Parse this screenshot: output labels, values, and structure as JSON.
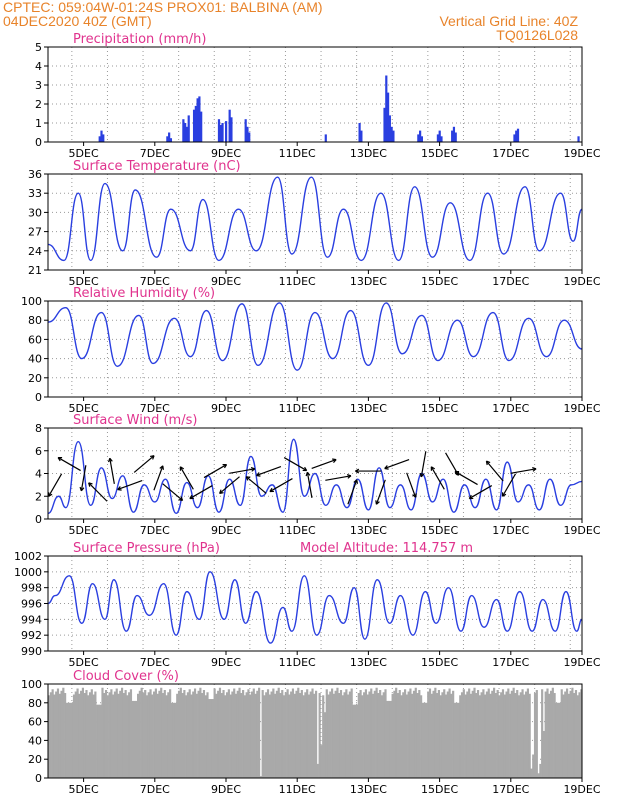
{
  "header": {
    "line1_left": "CPTEC:   059:04W-01:24S   PROX01: BALBINA (AM)",
    "line2_left": "04DEC2020 40Z (GMT)",
    "line2_right": "Vertical Grid Line: 40Z",
    "line3_right": "TQ0126L028",
    "color": "#e8832a"
  },
  "style": {
    "title_color": "#e0338e",
    "line_color": "#2a3fe0",
    "bar_color": "#2a3fe0",
    "cloud_color": "#a9a9a9",
    "arrow_color": "#000000"
  },
  "chart_data": [
    {
      "type": "bar",
      "title": "Precipitation (mm/h)",
      "ylim": [
        0,
        5
      ],
      "yticks": [
        0,
        1,
        2,
        3,
        4,
        5
      ],
      "x_ticks": [
        "5DEC",
        "7DEC",
        "9DEC",
        "11DEC",
        "13DEC",
        "15DEC",
        "17DEC",
        "19DEC"
      ],
      "x_range_days": [
        0,
        15
      ],
      "grid": "dotted",
      "bars": [
        {
          "d": 1.45,
          "v": 0.3
        },
        {
          "d": 1.5,
          "v": 0.6
        },
        {
          "d": 1.55,
          "v": 0.4
        },
        {
          "d": 3.35,
          "v": 0.3
        },
        {
          "d": 3.4,
          "v": 0.5
        },
        {
          "d": 3.45,
          "v": 0.2
        },
        {
          "d": 3.8,
          "v": 1.2
        },
        {
          "d": 3.85,
          "v": 1.0
        },
        {
          "d": 3.9,
          "v": 0.8
        },
        {
          "d": 3.95,
          "v": 1.4
        },
        {
          "d": 4.1,
          "v": 1.7
        },
        {
          "d": 4.15,
          "v": 1.9
        },
        {
          "d": 4.2,
          "v": 2.3
        },
        {
          "d": 4.25,
          "v": 2.4
        },
        {
          "d": 4.3,
          "v": 1.6
        },
        {
          "d": 4.8,
          "v": 1.2
        },
        {
          "d": 4.85,
          "v": 0.9
        },
        {
          "d": 4.9,
          "v": 1.0
        },
        {
          "d": 5.0,
          "v": 1.1
        },
        {
          "d": 5.1,
          "v": 1.7
        },
        {
          "d": 5.15,
          "v": 1.3
        },
        {
          "d": 5.55,
          "v": 1.2
        },
        {
          "d": 5.6,
          "v": 0.8
        },
        {
          "d": 5.65,
          "v": 0.5
        },
        {
          "d": 7.8,
          "v": 0.4
        },
        {
          "d": 8.75,
          "v": 1.0
        },
        {
          "d": 8.8,
          "v": 0.6
        },
        {
          "d": 9.45,
          "v": 1.8
        },
        {
          "d": 9.5,
          "v": 3.5
        },
        {
          "d": 9.55,
          "v": 2.6
        },
        {
          "d": 9.6,
          "v": 1.4
        },
        {
          "d": 9.65,
          "v": 0.8
        },
        {
          "d": 9.7,
          "v": 0.6
        },
        {
          "d": 10.4,
          "v": 0.4
        },
        {
          "d": 10.45,
          "v": 0.6
        },
        {
          "d": 10.5,
          "v": 0.3
        },
        {
          "d": 10.95,
          "v": 0.4
        },
        {
          "d": 11.0,
          "v": 0.6
        },
        {
          "d": 11.05,
          "v": 0.3
        },
        {
          "d": 11.35,
          "v": 0.6
        },
        {
          "d": 11.4,
          "v": 0.8
        },
        {
          "d": 11.45,
          "v": 0.5
        },
        {
          "d": 13.1,
          "v": 0.4
        },
        {
          "d": 13.15,
          "v": 0.6
        },
        {
          "d": 13.2,
          "v": 0.7
        },
        {
          "d": 14.9,
          "v": 0.3
        }
      ]
    },
    {
      "type": "line",
      "title": "Surface Temperature (nC)",
      "ylim": [
        21,
        36
      ],
      "yticks": [
        21,
        24,
        27,
        30,
        33,
        36
      ],
      "x_ticks": [
        "5DEC",
        "7DEC",
        "9DEC",
        "11DEC",
        "13DEC",
        "15DEC",
        "17DEC",
        "19DEC"
      ],
      "x_range_days": [
        0,
        15
      ],
      "grid": "dotted",
      "extrema_days": [
        0,
        0.45,
        0.85,
        1.2,
        1.6,
        2.1,
        2.45,
        3.05,
        3.45,
        4.0,
        4.35,
        4.8,
        5.35,
        5.85,
        6.45,
        6.85,
        7.4,
        7.85,
        8.3,
        8.8,
        9.35,
        9.85,
        10.3,
        10.8,
        11.3,
        11.85,
        12.35,
        12.8,
        13.4,
        13.8,
        14.4,
        14.75,
        15.0
      ],
      "extrema_values": [
        25,
        22.5,
        33,
        22.5,
        34.5,
        24,
        33.5,
        23,
        30.5,
        24,
        32,
        22.5,
        30.5,
        24,
        35.5,
        23.5,
        35.5,
        23,
        30.5,
        22.5,
        33,
        22.5,
        34,
        23,
        31.5,
        22.5,
        33,
        23.5,
        34,
        24,
        33,
        25.5,
        30.5
      ]
    },
    {
      "type": "line",
      "title": "Relative Humidity (%)",
      "ylim": [
        0,
        100
      ],
      "yticks": [
        0,
        20,
        40,
        60,
        80,
        100
      ],
      "x_ticks": [
        "5DEC",
        "7DEC",
        "9DEC",
        "11DEC",
        "13DEC",
        "15DEC",
        "17DEC",
        "19DEC"
      ],
      "x_range_days": [
        0,
        15
      ],
      "grid": "dotted",
      "extrema_days": [
        0,
        0.5,
        0.95,
        1.5,
        1.95,
        2.55,
        2.95,
        3.55,
        4.0,
        4.45,
        4.9,
        5.45,
        5.9,
        6.5,
        7.0,
        7.5,
        8.0,
        8.5,
        9.0,
        9.5,
        9.95,
        10.5,
        10.95,
        11.5,
        11.95,
        12.5,
        12.95,
        13.5,
        14.0,
        14.5,
        15.0
      ],
      "extrema_values": [
        78,
        93,
        40,
        88,
        32,
        85,
        35,
        82,
        42,
        90,
        38,
        97,
        33,
        98,
        28,
        88,
        40,
        90,
        33,
        98,
        45,
        85,
        38,
        80,
        42,
        88,
        38,
        82,
        42,
        80,
        50
      ]
    },
    {
      "type": "line",
      "title": "Surface Wind (m/s)",
      "ylim": [
        0,
        8
      ],
      "yticks": [
        0,
        2,
        4,
        6,
        8
      ],
      "x_ticks": [
        "5DEC",
        "7DEC",
        "9DEC",
        "11DEC",
        "13DEC",
        "15DEC",
        "17DEC",
        "19DEC"
      ],
      "x_range_days": [
        0,
        15
      ],
      "grid": "dotted",
      "extrema_days": [
        0,
        0.3,
        0.5,
        0.85,
        1.2,
        1.5,
        1.8,
        2.1,
        2.4,
        2.7,
        3.0,
        3.3,
        3.6,
        3.9,
        4.2,
        4.5,
        4.8,
        5.1,
        5.4,
        5.7,
        6.0,
        6.3,
        6.6,
        6.9,
        7.2,
        7.5,
        7.8,
        8.1,
        8.4,
        8.7,
        9.0,
        9.3,
        9.6,
        9.9,
        10.2,
        10.5,
        10.8,
        11.1,
        11.4,
        11.7,
        12.0,
        12.3,
        12.6,
        12.9,
        13.2,
        13.5,
        13.8,
        14.1,
        14.4,
        14.7,
        15.0
      ],
      "extrema_values": [
        0.5,
        2.0,
        1.0,
        6.8,
        1.2,
        4.5,
        1.8,
        3.8,
        0.6,
        3.0,
        1.5,
        3.5,
        0.5,
        3.2,
        1.0,
        3.8,
        0.6,
        3.5,
        1.2,
        5.5,
        2.0,
        3.0,
        0.6,
        7.0,
        2.0,
        4.0,
        1.2,
        3.0,
        1.0,
        3.5,
        0.8,
        4.5,
        1.0,
        3.0,
        0.8,
        4.0,
        1.5,
        3.5,
        0.6,
        3.0,
        1.0,
        3.5,
        0.8,
        5.0,
        1.5,
        3.0,
        0.8,
        3.5,
        1.2,
        3.0,
        3.3
      ],
      "arrows": [
        {
          "d": 0.2,
          "dir_deg": 240
        },
        {
          "d": 0.6,
          "dir_deg": 150
        },
        {
          "d": 1.0,
          "dir_deg": 260
        },
        {
          "d": 1.4,
          "dir_deg": 135
        },
        {
          "d": 1.8,
          "dir_deg": 100
        },
        {
          "d": 2.3,
          "dir_deg": 200
        },
        {
          "d": 2.7,
          "dir_deg": 40
        },
        {
          "d": 3.1,
          "dir_deg": 70
        },
        {
          "d": 3.5,
          "dir_deg": 320
        },
        {
          "d": 3.9,
          "dir_deg": 120
        },
        {
          "d": 4.3,
          "dir_deg": 210
        },
        {
          "d": 4.7,
          "dir_deg": 30
        },
        {
          "d": 5.1,
          "dir_deg": 220
        },
        {
          "d": 5.45,
          "dir_deg": 10
        },
        {
          "d": 5.85,
          "dir_deg": 140
        },
        {
          "d": 6.2,
          "dir_deg": 200
        },
        {
          "d": 6.55,
          "dir_deg": 210
        },
        {
          "d": 6.95,
          "dir_deg": 330
        },
        {
          "d": 7.35,
          "dir_deg": 100
        },
        {
          "d": 7.75,
          "dir_deg": 20
        },
        {
          "d": 8.15,
          "dir_deg": 10
        },
        {
          "d": 8.55,
          "dir_deg": 70
        },
        {
          "d": 9.0,
          "dir_deg": 180
        },
        {
          "d": 9.35,
          "dir_deg": 250
        },
        {
          "d": 9.8,
          "dir_deg": 200
        },
        {
          "d": 10.2,
          "dir_deg": 290
        },
        {
          "d": 10.55,
          "dir_deg": 260
        },
        {
          "d": 10.95,
          "dir_deg": 120
        },
        {
          "d": 11.35,
          "dir_deg": 300
        },
        {
          "d": 11.75,
          "dir_deg": 150
        },
        {
          "d": 12.15,
          "dir_deg": 210
        },
        {
          "d": 12.55,
          "dir_deg": 130
        },
        {
          "d": 12.95,
          "dir_deg": 240
        },
        {
          "d": 13.35,
          "dir_deg": 10
        }
      ]
    },
    {
      "type": "line",
      "title": "Surface Pressure (hPa)",
      "subtitle": "Model Altitude: 114.757  m",
      "ylim": [
        990,
        1002
      ],
      "yticks": [
        990,
        992,
        994,
        996,
        998,
        1000,
        1002
      ],
      "x_ticks": [
        "5DEC",
        "7DEC",
        "9DEC",
        "11DEC",
        "13DEC",
        "15DEC",
        "17DEC",
        "19DEC"
      ],
      "x_range_days": [
        0,
        15
      ],
      "grid": "dotted",
      "extrema_days": [
        0,
        0.2,
        0.6,
        0.95,
        1.25,
        1.6,
        1.85,
        2.2,
        2.5,
        2.85,
        3.25,
        3.6,
        3.9,
        4.25,
        4.55,
        4.95,
        5.25,
        5.55,
        5.85,
        6.25,
        6.6,
        6.85,
        7.2,
        7.55,
        7.9,
        8.3,
        8.6,
        8.9,
        9.25,
        9.6,
        9.9,
        10.25,
        10.6,
        10.9,
        11.25,
        11.6,
        11.9,
        12.25,
        12.6,
        12.9,
        13.25,
        13.6,
        13.9,
        14.25,
        14.55,
        14.85,
        15.0
      ],
      "extrema_values": [
        996,
        997,
        999.5,
        993.5,
        998.5,
        994,
        999,
        992.5,
        997,
        994.5,
        998.5,
        992,
        997.5,
        994,
        1000,
        994,
        999,
        993.5,
        997.5,
        991,
        995.5,
        992.5,
        999.5,
        992,
        997,
        993.5,
        998,
        991.5,
        999,
        993.5,
        997,
        992,
        997.5,
        993.5,
        998,
        992.5,
        997,
        993,
        996.5,
        992.5,
        997.5,
        992.5,
        996.5,
        992.5,
        997.5,
        992.5,
        994
      ]
    },
    {
      "type": "area",
      "title": "Cloud Cover (%)",
      "ylim": [
        0,
        100
      ],
      "yticks": [
        0,
        20,
        40,
        60,
        80,
        100
      ],
      "x_ticks": [
        "5DEC",
        "7DEC",
        "9DEC",
        "11DEC",
        "13DEC",
        "15DEC",
        "17DEC",
        "19DEC"
      ],
      "x_range_days": [
        0,
        15
      ],
      "grid": "dotted",
      "base_value": 92,
      "dips": [
        {
          "d": 0.55,
          "w": 0.2,
          "v": 80
        },
        {
          "d": 1.4,
          "w": 0.15,
          "v": 78
        },
        {
          "d": 2.4,
          "w": 0.15,
          "v": 82
        },
        {
          "d": 3.5,
          "w": 0.15,
          "v": 80
        },
        {
          "d": 4.55,
          "w": 0.12,
          "v": 84
        },
        {
          "d": 5.95,
          "w": 0.08,
          "v": 2
        },
        {
          "d": 7.55,
          "w": 0.05,
          "v": 15
        },
        {
          "d": 7.65,
          "w": 0.05,
          "v": 35
        },
        {
          "d": 7.75,
          "w": 0.05,
          "v": 70
        },
        {
          "d": 8.6,
          "w": 0.15,
          "v": 78
        },
        {
          "d": 9.55,
          "w": 0.15,
          "v": 82
        },
        {
          "d": 10.55,
          "w": 0.15,
          "v": 80
        },
        {
          "d": 11.45,
          "w": 0.15,
          "v": 80
        },
        {
          "d": 13.55,
          "w": 0.04,
          "v": 10
        },
        {
          "d": 13.62,
          "w": 0.04,
          "v": 25
        },
        {
          "d": 13.75,
          "w": 0.04,
          "v": 5
        },
        {
          "d": 13.82,
          "w": 0.04,
          "v": 15
        },
        {
          "d": 13.9,
          "w": 0.05,
          "v": 50
        },
        {
          "d": 14.3,
          "w": 0.15,
          "v": 80
        }
      ]
    }
  ]
}
